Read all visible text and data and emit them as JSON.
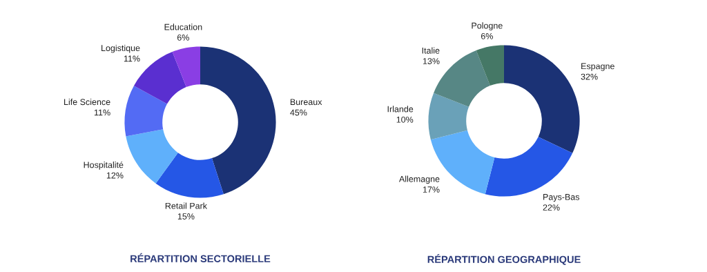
{
  "chart_data": [
    {
      "type": "donut",
      "title": "RÉPARTITION SECTORIELLE",
      "categories": [
        "Bureaux",
        "Retail Park",
        "Hospitalité",
        "Life Science",
        "Logistique",
        "Education"
      ],
      "values": [
        45,
        15,
        12,
        11,
        11,
        6
      ],
      "value_labels": [
        "45%",
        "15%",
        "12%",
        "11%",
        "11%",
        "6%"
      ],
      "colors": [
        "#1b3275",
        "#2557e6",
        "#5fb0fb",
        "#536bf4",
        "#5a2fd0",
        "#8a3ee4"
      ],
      "legend": false
    },
    {
      "type": "donut",
      "title": "RÉPARTITION GEOGRAPHIQUE",
      "categories": [
        "Espagne",
        "Pays-Bas",
        "Allemagne",
        "Irlande",
        "Italie",
        "Pologne"
      ],
      "values": [
        32,
        22,
        17,
        10,
        13,
        6
      ],
      "value_labels": [
        "32%",
        "22%",
        "17%",
        "10%",
        "13%",
        "6%"
      ],
      "colors": [
        "#1b3275",
        "#2557e6",
        "#5fb0fb",
        "#6aa1b8",
        "#578785",
        "#457866"
      ],
      "legend": false
    }
  ]
}
